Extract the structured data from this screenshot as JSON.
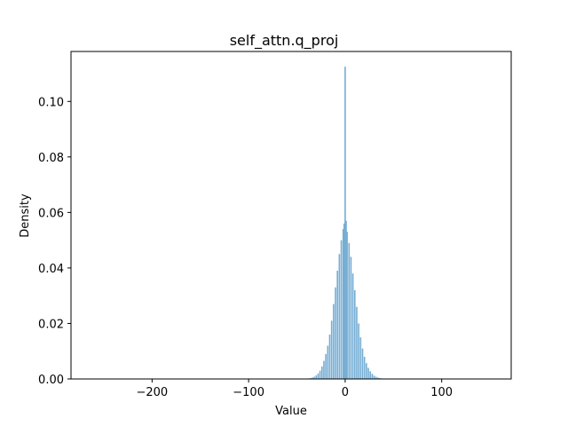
{
  "chart_data": {
    "type": "bar",
    "title": "self_attn.q_proj",
    "xlabel": "Value",
    "ylabel": "Density",
    "xlim": [
      -284,
      172
    ],
    "ylim": [
      0,
      0.118
    ],
    "grid": false,
    "color": "#76aed4",
    "x_ticks": [
      -200,
      -100,
      0,
      100
    ],
    "x_tick_labels": [
      "−200",
      "−100",
      "0",
      "100"
    ],
    "y_ticks": [
      0.0,
      0.02,
      0.04,
      0.06,
      0.08,
      0.1
    ],
    "y_tick_labels": [
      "0.00",
      "0.02",
      "0.04",
      "0.06",
      "0.08",
      "0.10"
    ],
    "bin_width": 1.5,
    "bins_x": [
      -38,
      -36,
      -34,
      -32,
      -30,
      -28,
      -26,
      -24,
      -22,
      -20,
      -18,
      -16,
      -14,
      -12,
      -10,
      -8,
      -6,
      -4,
      -2,
      -1,
      0,
      1,
      2,
      4,
      6,
      8,
      10,
      12,
      14,
      16,
      18,
      20,
      22,
      24,
      26,
      28,
      30,
      32,
      34,
      36,
      38
    ],
    "values": [
      0.0002,
      0.0003,
      0.0005,
      0.0008,
      0.0013,
      0.002,
      0.003,
      0.0045,
      0.0065,
      0.009,
      0.012,
      0.016,
      0.021,
      0.027,
      0.033,
      0.039,
      0.045,
      0.05,
      0.054,
      0.056,
      0.1125,
      0.057,
      0.053,
      0.049,
      0.044,
      0.038,
      0.032,
      0.026,
      0.02,
      0.015,
      0.011,
      0.008,
      0.0057,
      0.004,
      0.0028,
      0.0019,
      0.0012,
      0.0008,
      0.0005,
      0.0003,
      0.0002
    ]
  }
}
